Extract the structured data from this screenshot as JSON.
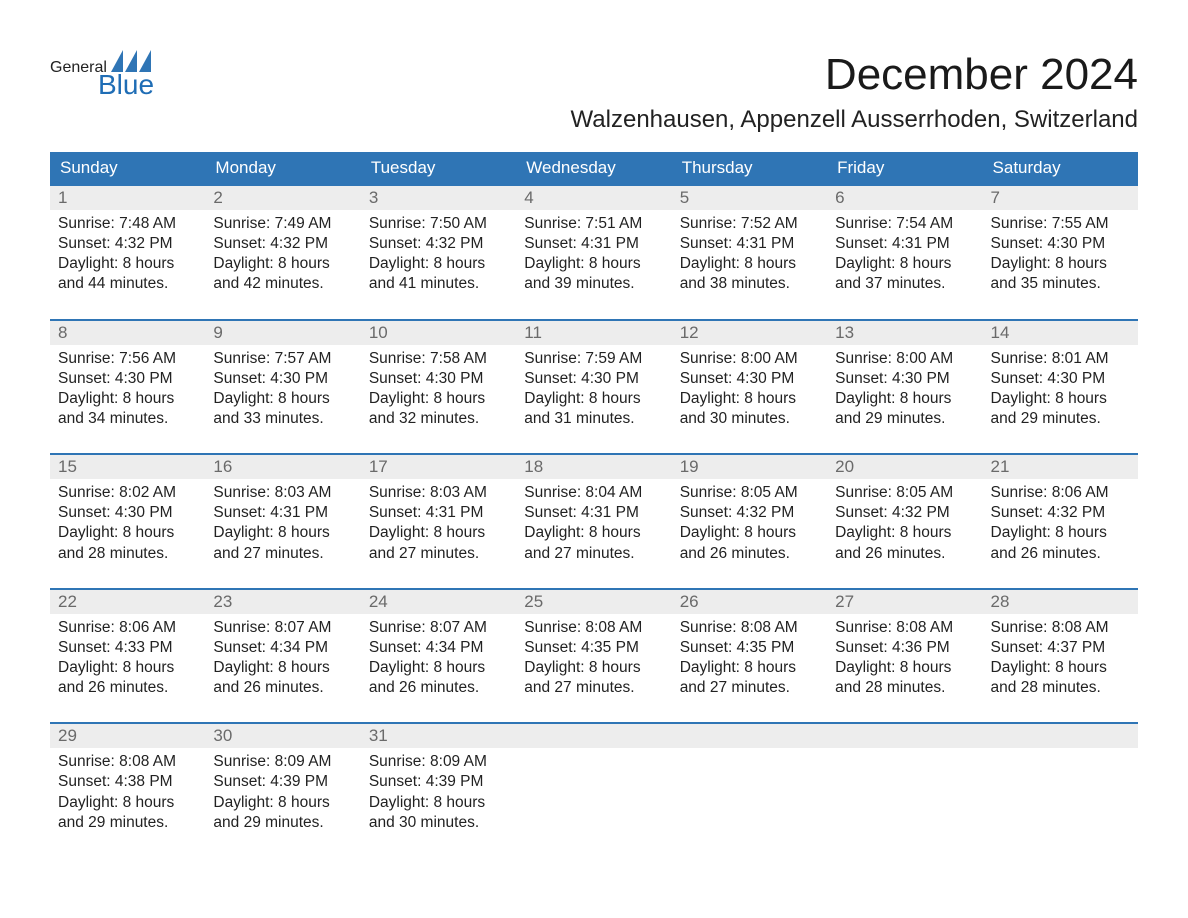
{
  "logo": {
    "general": "General",
    "blue": "Blue",
    "flag_color": "#2f75b5"
  },
  "title": "December 2024",
  "location": "Walzenhausen, Appenzell Ausserrhoden, Switzerland",
  "theme": {
    "header_bg": "#2f75b5",
    "header_text": "#ffffff",
    "daynum_bg": "#ededed",
    "daynum_text": "#6a6a6a",
    "body_text": "#222222",
    "week_border": "#2f75b5",
    "background": "#ffffff"
  },
  "typography": {
    "month_title_size_pt": 33,
    "location_size_pt": 18,
    "dayheader_size_pt": 13,
    "daynum_size_pt": 13,
    "body_size_pt": 12,
    "font_family": "Arial"
  },
  "day_headers": [
    "Sunday",
    "Monday",
    "Tuesday",
    "Wednesday",
    "Thursday",
    "Friday",
    "Saturday"
  ],
  "weeks": [
    [
      {
        "n": "1",
        "sr": "Sunrise: 7:48 AM",
        "ss": "Sunset: 4:32 PM",
        "d1": "Daylight: 8 hours",
        "d2": "and 44 minutes."
      },
      {
        "n": "2",
        "sr": "Sunrise: 7:49 AM",
        "ss": "Sunset: 4:32 PM",
        "d1": "Daylight: 8 hours",
        "d2": "and 42 minutes."
      },
      {
        "n": "3",
        "sr": "Sunrise: 7:50 AM",
        "ss": "Sunset: 4:32 PM",
        "d1": "Daylight: 8 hours",
        "d2": "and 41 minutes."
      },
      {
        "n": "4",
        "sr": "Sunrise: 7:51 AM",
        "ss": "Sunset: 4:31 PM",
        "d1": "Daylight: 8 hours",
        "d2": "and 39 minutes."
      },
      {
        "n": "5",
        "sr": "Sunrise: 7:52 AM",
        "ss": "Sunset: 4:31 PM",
        "d1": "Daylight: 8 hours",
        "d2": "and 38 minutes."
      },
      {
        "n": "6",
        "sr": "Sunrise: 7:54 AM",
        "ss": "Sunset: 4:31 PM",
        "d1": "Daylight: 8 hours",
        "d2": "and 37 minutes."
      },
      {
        "n": "7",
        "sr": "Sunrise: 7:55 AM",
        "ss": "Sunset: 4:30 PM",
        "d1": "Daylight: 8 hours",
        "d2": "and 35 minutes."
      }
    ],
    [
      {
        "n": "8",
        "sr": "Sunrise: 7:56 AM",
        "ss": "Sunset: 4:30 PM",
        "d1": "Daylight: 8 hours",
        "d2": "and 34 minutes."
      },
      {
        "n": "9",
        "sr": "Sunrise: 7:57 AM",
        "ss": "Sunset: 4:30 PM",
        "d1": "Daylight: 8 hours",
        "d2": "and 33 minutes."
      },
      {
        "n": "10",
        "sr": "Sunrise: 7:58 AM",
        "ss": "Sunset: 4:30 PM",
        "d1": "Daylight: 8 hours",
        "d2": "and 32 minutes."
      },
      {
        "n": "11",
        "sr": "Sunrise: 7:59 AM",
        "ss": "Sunset: 4:30 PM",
        "d1": "Daylight: 8 hours",
        "d2": "and 31 minutes."
      },
      {
        "n": "12",
        "sr": "Sunrise: 8:00 AM",
        "ss": "Sunset: 4:30 PM",
        "d1": "Daylight: 8 hours",
        "d2": "and 30 minutes."
      },
      {
        "n": "13",
        "sr": "Sunrise: 8:00 AM",
        "ss": "Sunset: 4:30 PM",
        "d1": "Daylight: 8 hours",
        "d2": "and 29 minutes."
      },
      {
        "n": "14",
        "sr": "Sunrise: 8:01 AM",
        "ss": "Sunset: 4:30 PM",
        "d1": "Daylight: 8 hours",
        "d2": "and 29 minutes."
      }
    ],
    [
      {
        "n": "15",
        "sr": "Sunrise: 8:02 AM",
        "ss": "Sunset: 4:30 PM",
        "d1": "Daylight: 8 hours",
        "d2": "and 28 minutes."
      },
      {
        "n": "16",
        "sr": "Sunrise: 8:03 AM",
        "ss": "Sunset: 4:31 PM",
        "d1": "Daylight: 8 hours",
        "d2": "and 27 minutes."
      },
      {
        "n": "17",
        "sr": "Sunrise: 8:03 AM",
        "ss": "Sunset: 4:31 PM",
        "d1": "Daylight: 8 hours",
        "d2": "and 27 minutes."
      },
      {
        "n": "18",
        "sr": "Sunrise: 8:04 AM",
        "ss": "Sunset: 4:31 PM",
        "d1": "Daylight: 8 hours",
        "d2": "and 27 minutes."
      },
      {
        "n": "19",
        "sr": "Sunrise: 8:05 AM",
        "ss": "Sunset: 4:32 PM",
        "d1": "Daylight: 8 hours",
        "d2": "and 26 minutes."
      },
      {
        "n": "20",
        "sr": "Sunrise: 8:05 AM",
        "ss": "Sunset: 4:32 PM",
        "d1": "Daylight: 8 hours",
        "d2": "and 26 minutes."
      },
      {
        "n": "21",
        "sr": "Sunrise: 8:06 AM",
        "ss": "Sunset: 4:32 PM",
        "d1": "Daylight: 8 hours",
        "d2": "and 26 minutes."
      }
    ],
    [
      {
        "n": "22",
        "sr": "Sunrise: 8:06 AM",
        "ss": "Sunset: 4:33 PM",
        "d1": "Daylight: 8 hours",
        "d2": "and 26 minutes."
      },
      {
        "n": "23",
        "sr": "Sunrise: 8:07 AM",
        "ss": "Sunset: 4:34 PM",
        "d1": "Daylight: 8 hours",
        "d2": "and 26 minutes."
      },
      {
        "n": "24",
        "sr": "Sunrise: 8:07 AM",
        "ss": "Sunset: 4:34 PM",
        "d1": "Daylight: 8 hours",
        "d2": "and 26 minutes."
      },
      {
        "n": "25",
        "sr": "Sunrise: 8:08 AM",
        "ss": "Sunset: 4:35 PM",
        "d1": "Daylight: 8 hours",
        "d2": "and 27 minutes."
      },
      {
        "n": "26",
        "sr": "Sunrise: 8:08 AM",
        "ss": "Sunset: 4:35 PM",
        "d1": "Daylight: 8 hours",
        "d2": "and 27 minutes."
      },
      {
        "n": "27",
        "sr": "Sunrise: 8:08 AM",
        "ss": "Sunset: 4:36 PM",
        "d1": "Daylight: 8 hours",
        "d2": "and 28 minutes."
      },
      {
        "n": "28",
        "sr": "Sunrise: 8:08 AM",
        "ss": "Sunset: 4:37 PM",
        "d1": "Daylight: 8 hours",
        "d2": "and 28 minutes."
      }
    ],
    [
      {
        "n": "29",
        "sr": "Sunrise: 8:08 AM",
        "ss": "Sunset: 4:38 PM",
        "d1": "Daylight: 8 hours",
        "d2": "and 29 minutes."
      },
      {
        "n": "30",
        "sr": "Sunrise: 8:09 AM",
        "ss": "Sunset: 4:39 PM",
        "d1": "Daylight: 8 hours",
        "d2": "and 29 minutes."
      },
      {
        "n": "31",
        "sr": "Sunrise: 8:09 AM",
        "ss": "Sunset: 4:39 PM",
        "d1": "Daylight: 8 hours",
        "d2": "and 30 minutes."
      },
      {
        "empty": true
      },
      {
        "empty": true
      },
      {
        "empty": true
      },
      {
        "empty": true
      }
    ]
  ]
}
